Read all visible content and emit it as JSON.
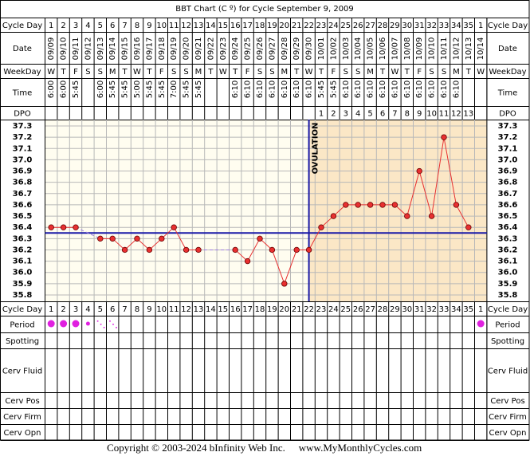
{
  "chart_data": {
    "type": "line",
    "title": "BBT Chart (C º) for Cycle September 9, 2009",
    "rows": {
      "cycle_day": "Cycle Day",
      "date": "Date",
      "weekday": "WeekDay",
      "time": "Time",
      "dpo": "DPO",
      "period": "Period",
      "spotting": "Spotting",
      "cerv_fluid": "Cerv Fluid",
      "cerv_pos": "Cerv Pos",
      "cerv_firm": "Cerv Firm",
      "cerv_opn": "Cerv Opn"
    },
    "cycle_days": [
      1,
      2,
      3,
      4,
      5,
      6,
      7,
      8,
      9,
      10,
      11,
      12,
      13,
      14,
      15,
      16,
      17,
      18,
      19,
      20,
      21,
      22,
      23,
      24,
      25,
      26,
      27,
      28,
      29,
      30,
      31,
      32,
      33,
      34,
      35,
      1
    ],
    "categories": [
      "09/09",
      "09/10",
      "09/11",
      "09/12",
      "09/13",
      "09/14",
      "09/15",
      "09/16",
      "09/17",
      "09/18",
      "09/19",
      "09/20",
      "09/21",
      "09/22",
      "09/23",
      "09/24",
      "09/25",
      "09/26",
      "09/27",
      "09/28",
      "09/29",
      "09/30",
      "10/01",
      "10/02",
      "10/03",
      "10/04",
      "10/05",
      "10/06",
      "10/07",
      "10/08",
      "10/09",
      "10/10",
      "10/11",
      "10/12",
      "10/13",
      "10/14"
    ],
    "weekdays": [
      "W",
      "T",
      "F",
      "S",
      "S",
      "M",
      "T",
      "W",
      "T",
      "F",
      "S",
      "S",
      "M",
      "T",
      "W",
      "T",
      "F",
      "S",
      "S",
      "M",
      "T",
      "W",
      "T",
      "F",
      "S",
      "S",
      "M",
      "T",
      "W",
      "T",
      "F",
      "S",
      "S",
      "M",
      "T",
      "W"
    ],
    "times": [
      "6:00",
      "6:00",
      "5:45",
      null,
      "6:00",
      "5:45",
      "5:45",
      "5:00",
      "5:45",
      "5:45",
      "7:00",
      "5:45",
      "5:45",
      null,
      null,
      "6:10",
      "6:10",
      "6:10",
      "6:10",
      "6:10",
      "6:10",
      "6:10",
      "5:45",
      "5:45",
      "6:10",
      "6:10",
      "6:10",
      "6:10",
      "6:10",
      "6:10",
      "6:10",
      "6:10",
      "6:10",
      "6:10",
      null,
      null
    ],
    "dpo": [
      null,
      null,
      null,
      null,
      null,
      null,
      null,
      null,
      null,
      null,
      null,
      null,
      null,
      null,
      null,
      null,
      null,
      null,
      null,
      null,
      null,
      null,
      1,
      2,
      3,
      4,
      5,
      6,
      7,
      8,
      9,
      10,
      11,
      12,
      13,
      null
    ],
    "values": [
      36.4,
      36.4,
      36.4,
      null,
      36.3,
      36.3,
      36.2,
      36.3,
      36.2,
      36.3,
      36.4,
      36.2,
      36.2,
      null,
      null,
      36.2,
      36.1,
      36.3,
      36.2,
      35.9,
      36.2,
      36.2,
      36.4,
      36.5,
      36.6,
      36.6,
      36.6,
      36.6,
      36.6,
      36.5,
      36.9,
      36.5,
      37.2,
      36.6,
      36.4,
      null
    ],
    "color": "#e83030",
    "gap_color": "#9a7ae0",
    "ylim": [
      35.743,
      37.357
    ],
    "yticks": [
      {
        "value": 37.3,
        "label": "37.3"
      },
      {
        "value": 37.2,
        "label": "37.2"
      },
      {
        "value": 37.1,
        "label": "37.1"
      },
      {
        "value": 37,
        "label": "37.0"
      },
      {
        "value": 36.9,
        "label": "36.9"
      },
      {
        "value": 36.8,
        "label": "36.8"
      },
      {
        "value": 36.7,
        "label": "36.7"
      },
      {
        "value": 36.6,
        "label": "36.6"
      },
      {
        "value": 36.5,
        "label": "36.5"
      },
      {
        "value": 36.4,
        "label": "36.4"
      },
      {
        "value": 36.3,
        "label": "36.3"
      },
      {
        "value": 36.2,
        "label": "36.2"
      },
      {
        "value": 36.1,
        "label": "36.1"
      },
      {
        "value": 36,
        "label": "36.0"
      },
      {
        "value": 35.9,
        "label": "35.9"
      },
      {
        "value": 35.8,
        "label": "35.8"
      }
    ],
    "coverline": 36.35,
    "coverline_color": "#1a1aa8",
    "ovulation_index": 21,
    "ovulation_label": "OVULATION",
    "shade_color": "#fbe7c6",
    "period": [
      3,
      3,
      3,
      2,
      1,
      1,
      null,
      null,
      null,
      null,
      null,
      null,
      null,
      null,
      null,
      null,
      null,
      null,
      null,
      null,
      null,
      null,
      null,
      null,
      null,
      null,
      null,
      null,
      null,
      null,
      null,
      null,
      null,
      null,
      null,
      3
    ],
    "period_color": "#e020e0",
    "copyright": "Copyright © 2003-2024 bInfinity Web Inc.",
    "website": "www.MyMonthlyCycles.com"
  }
}
